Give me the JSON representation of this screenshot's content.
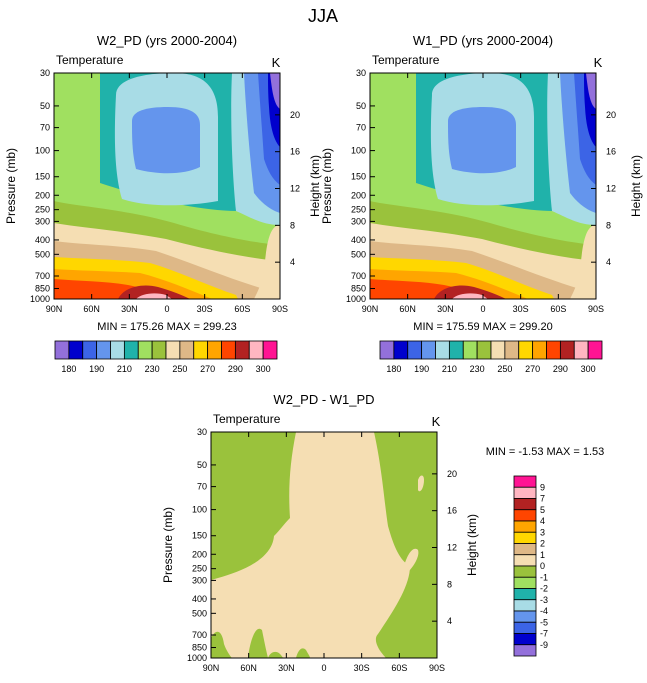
{
  "figure_title": "JJA",
  "colors": {
    "frame": "#000000",
    "background": "#ffffff"
  },
  "chart_data": [
    {
      "type": "heatmap",
      "panel": "left",
      "title": "W2_PD (yrs 2000-2004)",
      "left_string": "Temperature",
      "right_string": "K",
      "ylabel_left": "Pressure (mb)",
      "ylabel_right": "Height (km)",
      "x_ticks": [
        "90N",
        "60N",
        "30N",
        "0",
        "30S",
        "60S",
        "90S"
      ],
      "pressure_ticks": [
        "30",
        "50",
        "70",
        "100",
        "150",
        "200",
        "250",
        "300",
        "400",
        "500",
        "700",
        "850",
        "1000"
      ],
      "height_ticks": [
        "20",
        "16",
        "12",
        "8",
        "4"
      ],
      "min_max_label": "MIN = 175.26  MAX = 299.23",
      "min": 175.26,
      "max": 299.23,
      "legend": {
        "orientation": "horizontal",
        "tick_labels": [
          "180",
          "190",
          "210",
          "230",
          "250",
          "270",
          "290",
          "300"
        ],
        "colors": [
          "#9370db",
          "#0000cd",
          "#3c64e6",
          "#6495ed",
          "#a8dce6",
          "#20b2aa",
          "#a0e060",
          "#9ac23c",
          "#f5deb3",
          "#deb887",
          "#ffd700",
          "#ffa500",
          "#ff4500",
          "#b22222",
          "#ffb6c1",
          "#ff1493"
        ]
      }
    },
    {
      "type": "heatmap",
      "panel": "right",
      "title": "W1_PD (yrs 2000-2004)",
      "left_string": "Temperature",
      "right_string": "K",
      "ylabel_left": "Pressure (mb)",
      "ylabel_right": "Height (km)",
      "x_ticks": [
        "90N",
        "60N",
        "30N",
        "0",
        "30S",
        "60S",
        "90S"
      ],
      "pressure_ticks": [
        "30",
        "50",
        "70",
        "100",
        "150",
        "200",
        "250",
        "300",
        "400",
        "500",
        "700",
        "850",
        "1000"
      ],
      "height_ticks": [
        "20",
        "16",
        "12",
        "8",
        "4"
      ],
      "min_max_label": "MIN = 175.59  MAX = 299.20",
      "min": 175.59,
      "max": 299.2,
      "legend": {
        "orientation": "horizontal",
        "tick_labels": [
          "180",
          "190",
          "210",
          "230",
          "250",
          "270",
          "290",
          "300"
        ],
        "colors": [
          "#9370db",
          "#0000cd",
          "#3c64e6",
          "#6495ed",
          "#a8dce6",
          "#20b2aa",
          "#a0e060",
          "#9ac23c",
          "#f5deb3",
          "#deb887",
          "#ffd700",
          "#ffa500",
          "#ff4500",
          "#b22222",
          "#ffb6c1",
          "#ff1493"
        ]
      }
    },
    {
      "type": "heatmap",
      "panel": "bottom",
      "title": "W2_PD - W1_PD",
      "left_string": "Temperature",
      "right_string": "K",
      "ylabel_left": "Pressure (mb)",
      "ylabel_right": "Height (km)",
      "x_ticks": [
        "90N",
        "60N",
        "30N",
        "0",
        "30S",
        "60S",
        "90S"
      ],
      "pressure_ticks": [
        "30",
        "50",
        "70",
        "100",
        "150",
        "200",
        "250",
        "300",
        "400",
        "500",
        "700",
        "850",
        "1000"
      ],
      "height_ticks": [
        "20",
        "16",
        "12",
        "8",
        "4"
      ],
      "min_max_label": "MIN =  -1.53  MAX =  1.53",
      "min": -1.53,
      "max": 1.53,
      "legend": {
        "orientation": "vertical",
        "tick_labels": [
          "9",
          "7",
          "5",
          "4",
          "3",
          "2",
          "1",
          "0",
          "-1",
          "-2",
          "-3",
          "-4",
          "-5",
          "-7",
          "-9"
        ],
        "colors": [
          "#ff1493",
          "#ffb6c1",
          "#b22222",
          "#ff4500",
          "#ffa500",
          "#ffd700",
          "#deb887",
          "#f5deb3",
          "#9ac23c",
          "#a0e060",
          "#20b2aa",
          "#a8dce6",
          "#6495ed",
          "#3c64e6",
          "#0000cd",
          "#9370db"
        ]
      }
    }
  ]
}
